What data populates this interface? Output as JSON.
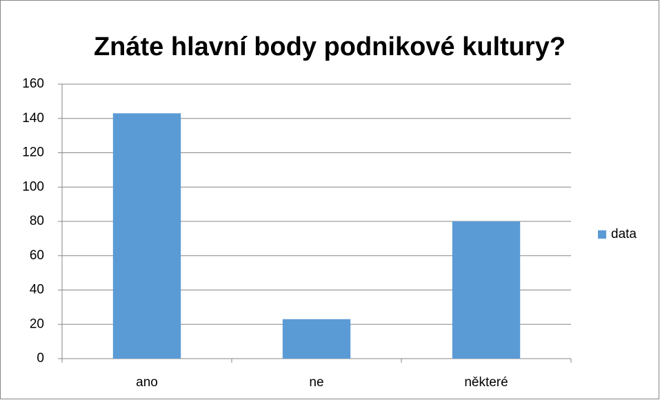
{
  "chart_data": {
    "type": "bar",
    "title": "Znáte hlavní body podnikové kultury?",
    "categories": [
      "ano",
      "ne",
      "některé"
    ],
    "series": [
      {
        "name": "data",
        "color": "#5b9bd5",
        "values": [
          143,
          23,
          80
        ]
      }
    ],
    "ylim": [
      0,
      160
    ],
    "yticks": [
      0,
      20,
      40,
      60,
      80,
      100,
      120,
      140,
      160
    ],
    "grid": true,
    "legend": "right"
  }
}
